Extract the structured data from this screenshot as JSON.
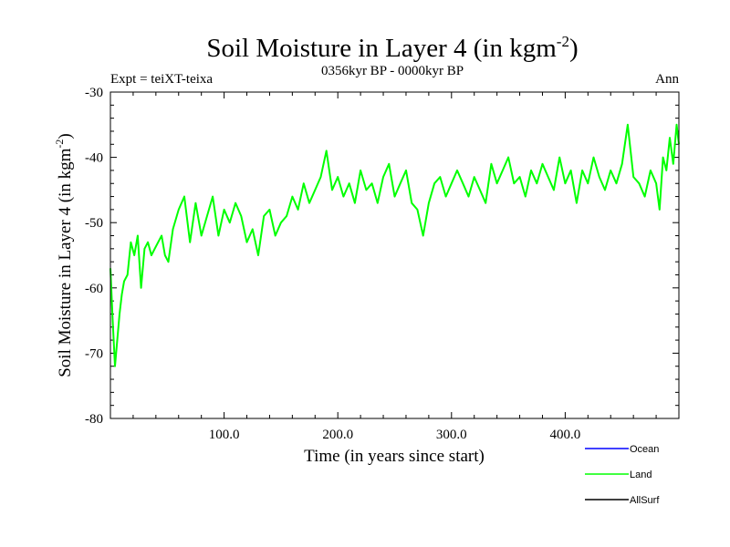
{
  "chart_data": {
    "type": "line",
    "title_main": "Soil Moisture in Layer 4 (in kgm",
    "title_sup": "-2",
    "title_close": ")",
    "subtitle": "0356kyr BP - 0000kyr BP",
    "left_label": "Expt = teiXT-teixa",
    "right_label": "Ann",
    "xlabel": "Time (in years since start)",
    "ylabel_main": "Soil Moisture in Layer 4 (in kgm",
    "ylabel_sup": "-2",
    "ylabel_close": ")",
    "xlim": [
      0,
      500
    ],
    "ylim": [
      -80,
      -30
    ],
    "x_ticks": [
      100,
      200,
      300,
      400
    ],
    "x_tick_labels": [
      "100.0",
      "200.0",
      "300.0",
      "400.0"
    ],
    "y_ticks": [
      -30,
      -40,
      -50,
      -60,
      -70,
      -80
    ],
    "y_tick_labels": [
      "-30",
      "-40",
      "-50",
      "-60",
      "-70",
      "-80"
    ],
    "legend": [
      {
        "name": "Ocean",
        "color": "#0000ff"
      },
      {
        "name": "Land",
        "color": "#00ff00"
      },
      {
        "name": "AllSurf",
        "color": "#000000"
      }
    ],
    "series": [
      {
        "name": "Land",
        "color": "#00ff00",
        "x": [
          0,
          2,
          4,
          6,
          8,
          10,
          12,
          15,
          18,
          21,
          24,
          27,
          30,
          33,
          36,
          39,
          42,
          45,
          48,
          51,
          55,
          60,
          65,
          70,
          75,
          80,
          85,
          90,
          95,
          100,
          105,
          110,
          115,
          120,
          125,
          130,
          135,
          140,
          145,
          150,
          155,
          160,
          165,
          170,
          175,
          180,
          185,
          190,
          195,
          200,
          205,
          210,
          215,
          220,
          225,
          230,
          235,
          240,
          245,
          250,
          255,
          260,
          265,
          270,
          275,
          280,
          285,
          290,
          295,
          300,
          305,
          310,
          315,
          320,
          325,
          330,
          335,
          340,
          345,
          350,
          355,
          360,
          365,
          370,
          375,
          380,
          385,
          390,
          395,
          400,
          405,
          410,
          415,
          420,
          425,
          430,
          435,
          440,
          445,
          450,
          455,
          460,
          465,
          470,
          475,
          480,
          483,
          486,
          489,
          492,
          495,
          498,
          500
        ],
        "y": [
          -57,
          -65,
          -72,
          -68,
          -64,
          -61,
          -59,
          -58,
          -53,
          -55,
          -52,
          -60,
          -54,
          -53,
          -55,
          -54,
          -53,
          -52,
          -55,
          -56,
          -51,
          -48,
          -46,
          -53,
          -47,
          -52,
          -49,
          -46,
          -52,
          -48,
          -50,
          -47,
          -49,
          -53,
          -51,
          -55,
          -49,
          -48,
          -52,
          -50,
          -49,
          -46,
          -48,
          -44,
          -47,
          -45,
          -43,
          -39,
          -45,
          -43,
          -46,
          -44,
          -47,
          -42,
          -45,
          -44,
          -47,
          -43,
          -41,
          -46,
          -44,
          -42,
          -47,
          -48,
          -52,
          -47,
          -44,
          -43,
          -46,
          -44,
          -42,
          -44,
          -46,
          -43,
          -45,
          -47,
          -41,
          -44,
          -42,
          -40,
          -44,
          -43,
          -46,
          -42,
          -44,
          -41,
          -43,
          -45,
          -40,
          -44,
          -42,
          -47,
          -42,
          -44,
          -40,
          -43,
          -45,
          -42,
          -44,
          -41,
          -35,
          -43,
          -44,
          -46,
          -42,
          -44,
          -48,
          -40,
          -42,
          -37,
          -41,
          -35,
          -38
        ]
      }
    ]
  }
}
